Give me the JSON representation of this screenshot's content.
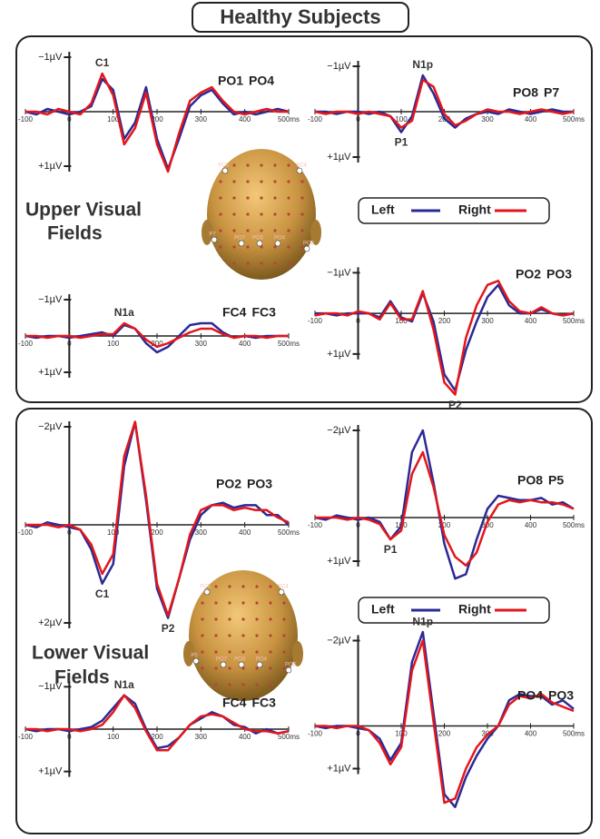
{
  "title": "Healthy Subjects",
  "sections": [
    {
      "label": [
        "Upper Visual",
        "Fields"
      ],
      "legend": [
        {
          "name": "Left",
          "color": "#2a2a96"
        },
        {
          "name": "Right",
          "color": "#e3161b"
        }
      ],
      "head_labels": [
        "FC3",
        "FC4",
        "P7",
        "PO7",
        "PO3",
        "PO4",
        "PO8"
      ]
    },
    {
      "label": [
        "Lower Visual",
        "Fields"
      ],
      "legend": [
        {
          "name": "Left",
          "color": "#2a2a96"
        },
        {
          "name": "Right",
          "color": "#e3161b"
        }
      ],
      "head_labels": [
        "FC3",
        "FC4",
        "P5",
        "PO7",
        "PO3",
        "PO4",
        "PO8"
      ]
    }
  ],
  "chart_data": [
    {
      "type": "line",
      "x": [
        -100,
        -75,
        -50,
        -25,
        0,
        25,
        50,
        75,
        100,
        125,
        150,
        175,
        200,
        225,
        250,
        275,
        300,
        325,
        350,
        375,
        400,
        425,
        450,
        475,
        500
      ],
      "xlim": [
        -100,
        500
      ],
      "xticks": [
        -100,
        0,
        100,
        200,
        300,
        400,
        {
          "value": 500,
          "label": "500ms"
        }
      ],
      "ylim": [
        -1.5,
        1.5
      ],
      "y_inverted": true,
      "yticks": [
        {
          "value": -1,
          "label": "−1µV"
        },
        {
          "value": 1,
          "label": "+1µV"
        }
      ],
      "series": [
        {
          "name": "PO1",
          "color": "#2a2a96",
          "values": [
            0,
            0.05,
            -0.05,
            0,
            0.05,
            0,
            -0.1,
            -0.6,
            -0.4,
            0.5,
            0.2,
            -0.45,
            0.5,
            1.05,
            0.5,
            -0.1,
            -0.3,
            -0.4,
            -0.15,
            0.05,
            0,
            0.05,
            0,
            -0.05,
            0
          ]
        },
        {
          "name": "PO4",
          "color": "#e3161b",
          "values": [
            0,
            0,
            0.05,
            -0.05,
            0,
            0.05,
            -0.15,
            -0.7,
            -0.3,
            0.6,
            0.3,
            -0.35,
            0.6,
            1.1,
            0.4,
            -0.2,
            -0.35,
            -0.45,
            -0.2,
            0,
            0.05,
            0,
            -0.05,
            0,
            0
          ]
        }
      ],
      "annotations": [
        {
          "text": "C1",
          "x": 75
        }
      ]
    },
    {
      "type": "line",
      "x": [
        -100,
        -75,
        -50,
        -25,
        0,
        25,
        50,
        75,
        100,
        125,
        150,
        175,
        200,
        225,
        250,
        275,
        300,
        325,
        350,
        375,
        400,
        425,
        450,
        475,
        500
      ],
      "xlim": [
        -100,
        500
      ],
      "xticks": [
        -100,
        0,
        100,
        200,
        300,
        400,
        {
          "value": 500,
          "label": "500ms"
        }
      ],
      "ylim": [
        -1.5,
        1.5
      ],
      "y_inverted": true,
      "yticks": [
        {
          "value": -1,
          "label": "−1µV"
        },
        {
          "value": 1,
          "label": "+1µV"
        }
      ],
      "series": [
        {
          "name": "PO8",
          "color": "#2a2a96",
          "values": [
            0,
            0,
            0.05,
            0,
            0,
            0.05,
            0,
            0.1,
            0.45,
            0.1,
            -0.8,
            -0.4,
            0.15,
            0.35,
            0.15,
            0.05,
            0,
            0.05,
            -0.05,
            0,
            0.05,
            0,
            -0.05,
            0,
            0
          ]
        },
        {
          "name": "P7",
          "color": "#e3161b",
          "values": [
            0,
            0.05,
            0,
            0,
            0.05,
            0,
            0.05,
            0.1,
            0.35,
            0.2,
            -0.7,
            -0.55,
            0.05,
            0.3,
            0.2,
            0.05,
            -0.05,
            0,
            0,
            0.05,
            0,
            -0.05,
            0,
            0.05,
            0
          ]
        }
      ],
      "annotations": [
        {
          "text": "N1p",
          "x": 150
        },
        {
          "text": "P1",
          "x": 100
        }
      ]
    },
    {
      "type": "line",
      "x": [
        -100,
        -75,
        -50,
        -25,
        0,
        25,
        50,
        75,
        100,
        125,
        150,
        175,
        200,
        225,
        250,
        275,
        300,
        325,
        350,
        375,
        400,
        425,
        450,
        475,
        500
      ],
      "xlim": [
        -100,
        500
      ],
      "xticks": [
        -100,
        0,
        100,
        200,
        300,
        400,
        {
          "value": 500,
          "label": "500ms"
        }
      ],
      "ylim": [
        -1.5,
        1.5
      ],
      "y_inverted": true,
      "yticks": [
        {
          "value": -1,
          "label": "−1µV"
        },
        {
          "value": 1,
          "label": "+1µV"
        }
      ],
      "series": [
        {
          "name": "FC4",
          "color": "#2a2a96",
          "values": [
            0,
            0.05,
            0,
            0,
            0.05,
            0,
            -0.05,
            -0.1,
            0,
            -0.3,
            -0.2,
            0.2,
            0.45,
            0.3,
            0,
            -0.3,
            -0.35,
            -0.35,
            -0.1,
            0.05,
            0,
            0.05,
            0,
            0,
            0
          ]
        },
        {
          "name": "FC3",
          "color": "#e3161b",
          "values": [
            0,
            0,
            0.05,
            0,
            0,
            0.05,
            0,
            -0.05,
            -0.05,
            -0.35,
            -0.2,
            0.1,
            0.3,
            0.2,
            0.05,
            -0.1,
            -0.2,
            -0.2,
            -0.05,
            0.05,
            0,
            0,
            0.05,
            0,
            0
          ]
        }
      ],
      "annotations": [
        {
          "text": "N1a",
          "x": 125
        }
      ]
    },
    {
      "type": "line",
      "x": [
        -100,
        -75,
        -50,
        -25,
        0,
        25,
        50,
        75,
        100,
        125,
        150,
        175,
        200,
        225,
        250,
        275,
        300,
        325,
        350,
        375,
        400,
        425,
        450,
        475,
        500
      ],
      "xlim": [
        -100,
        500
      ],
      "xticks": [
        -100,
        0,
        100,
        200,
        300,
        400,
        {
          "value": 500,
          "label": "500ms"
        }
      ],
      "ylim": [
        -1.5,
        2.5
      ],
      "y_inverted": true,
      "yticks": [
        {
          "value": -1,
          "label": "−1µV"
        },
        {
          "value": 1,
          "label": "+1µV"
        }
      ],
      "series": [
        {
          "name": "PO2",
          "color": "#2a2a96",
          "values": [
            0,
            0,
            0.05,
            0,
            0,
            0,
            0.1,
            -0.3,
            0.1,
            0.2,
            -0.5,
            0.2,
            1.5,
            1.9,
            0.9,
            0.2,
            -0.4,
            -0.7,
            -0.2,
            0,
            0,
            -0.1,
            0,
            0.05,
            0
          ]
        },
        {
          "name": "PO3",
          "color": "#e3161b",
          "values": [
            0.05,
            0,
            0,
            0.05,
            -0.05,
            0,
            0.15,
            -0.25,
            0.15,
            0.15,
            -0.55,
            0.4,
            1.7,
            2.0,
            0.6,
            -0.2,
            -0.7,
            -0.8,
            -0.3,
            -0.05,
            0,
            -0.15,
            0,
            0.05,
            0
          ]
        }
      ],
      "annotations": [
        {
          "text": "P2",
          "x": 225
        }
      ]
    },
    {
      "type": "line",
      "x": [
        -100,
        -75,
        -50,
        -25,
        0,
        25,
        50,
        75,
        100,
        125,
        150,
        175,
        200,
        225,
        250,
        275,
        300,
        325,
        350,
        375,
        400,
        425,
        450,
        475,
        500
      ],
      "xlim": [
        -100,
        500
      ],
      "xticks": [
        -100,
        0,
        100,
        200,
        300,
        400,
        {
          "value": 500,
          "label": "500ms"
        }
      ],
      "ylim": [
        -2.5,
        2.5
      ],
      "y_inverted": true,
      "yticks": [
        {
          "value": -2,
          "label": "−2µV"
        },
        {
          "value": 2,
          "label": "+2µV"
        }
      ],
      "series": [
        {
          "name": "PO2",
          "color": "#2a2a96",
          "values": [
            0,
            0.05,
            -0.05,
            0,
            0.05,
            0.1,
            0.5,
            1.2,
            0.8,
            -1.2,
            -2.1,
            -0.5,
            1.3,
            1.9,
            1.1,
            0.3,
            -0.2,
            -0.4,
            -0.45,
            -0.35,
            -0.4,
            -0.4,
            -0.2,
            -0.2,
            0
          ]
        },
        {
          "name": "PO3",
          "color": "#e3161b",
          "values": [
            0,
            0,
            0,
            0.05,
            0,
            0.1,
            0.4,
            1.0,
            0.6,
            -1.4,
            -2.1,
            -0.6,
            1.2,
            1.85,
            1.1,
            0.2,
            -0.3,
            -0.4,
            -0.4,
            -0.3,
            -0.35,
            -0.3,
            -0.3,
            -0.15,
            -0.05
          ]
        }
      ],
      "annotations": [
        {
          "text": "C1",
          "x": 75
        },
        {
          "text": "P2",
          "x": 225
        }
      ]
    },
    {
      "type": "line",
      "x": [
        -100,
        -75,
        -50,
        -25,
        0,
        25,
        50,
        75,
        100,
        125,
        150,
        175,
        200,
        225,
        250,
        275,
        300,
        325,
        350,
        375,
        400,
        425,
        450,
        475,
        500
      ],
      "xlim": [
        -100,
        500
      ],
      "xticks": [
        -100,
        0,
        100,
        200,
        300,
        400,
        {
          "value": 500,
          "label": "500ms"
        }
      ],
      "ylim": [
        -2.5,
        2
      ],
      "y_inverted": true,
      "yticks": [
        {
          "value": -2,
          "label": "−2µV"
        },
        {
          "value": 1,
          "label": "+1µV"
        }
      ],
      "series": [
        {
          "name": "PO8",
          "color": "#2a2a96",
          "values": [
            0,
            0.05,
            -0.05,
            0,
            0.05,
            0,
            0.1,
            0.5,
            0.2,
            -1.5,
            -2.0,
            -0.8,
            0.6,
            1.4,
            1.3,
            0.5,
            -0.2,
            -0.5,
            -0.45,
            -0.4,
            -0.4,
            -0.45,
            -0.3,
            -0.35,
            -0.2
          ]
        },
        {
          "name": "P5",
          "color": "#e3161b",
          "values": [
            0,
            0,
            0,
            0.05,
            0,
            0.05,
            0.15,
            0.5,
            0.3,
            -1.0,
            -1.5,
            -0.7,
            0.4,
            0.9,
            1.1,
            0.8,
            0.1,
            -0.3,
            -0.4,
            -0.35,
            -0.4,
            -0.35,
            -0.35,
            -0.3,
            -0.2
          ]
        }
      ],
      "annotations": [
        {
          "text": "P1",
          "x": 75
        }
      ]
    },
    {
      "type": "line",
      "x": [
        -100,
        -75,
        -50,
        -25,
        0,
        25,
        50,
        75,
        100,
        125,
        150,
        175,
        200,
        225,
        250,
        275,
        300,
        325,
        350,
        375,
        400,
        425,
        450,
        475,
        500
      ],
      "xlim": [
        -100,
        500
      ],
      "xticks": [
        -100,
        0,
        100,
        200,
        300,
        400,
        {
          "value": 500,
          "label": "500ms"
        }
      ],
      "ylim": [
        -1.5,
        1.5
      ],
      "y_inverted": true,
      "yticks": [
        {
          "value": -1,
          "label": "−1µV"
        },
        {
          "value": 1,
          "label": "+1µV"
        }
      ],
      "series": [
        {
          "name": "FC4",
          "color": "#2a2a96",
          "values": [
            0,
            0.05,
            0,
            0,
            0.05,
            0,
            -0.05,
            -0.2,
            -0.5,
            -0.8,
            -0.6,
            0,
            0.45,
            0.4,
            0.2,
            -0.1,
            -0.25,
            -0.4,
            -0.3,
            -0.1,
            -0.05,
            0.1,
            0,
            0.1,
            0.05
          ]
        },
        {
          "name": "FC3",
          "color": "#e3161b",
          "values": [
            0,
            0,
            0.05,
            0,
            0,
            0.05,
            0,
            -0.1,
            -0.4,
            -0.8,
            -0.5,
            0.05,
            0.5,
            0.5,
            0.2,
            -0.1,
            -0.3,
            -0.35,
            -0.3,
            -0.15,
            0,
            0.05,
            0.05,
            0.1,
            0.05
          ]
        }
      ],
      "annotations": [
        {
          "text": "N1a",
          "x": 125
        }
      ]
    },
    {
      "type": "line",
      "x": [
        -100,
        -75,
        -50,
        -25,
        0,
        25,
        50,
        75,
        100,
        125,
        150,
        175,
        200,
        225,
        250,
        275,
        300,
        325,
        350,
        375,
        400,
        425,
        450,
        475,
        500
      ],
      "xlim": [
        -100,
        500
      ],
      "xticks": [
        -100,
        0,
        100,
        200,
        300,
        400,
        {
          "value": 500,
          "label": "500ms"
        }
      ],
      "ylim": [
        -2.5,
        2.5
      ],
      "y_inverted": true,
      "yticks": [
        {
          "value": -2,
          "label": "−2µV"
        },
        {
          "value": 1,
          "label": "+1µV"
        }
      ],
      "series": [
        {
          "name": "PO4",
          "color": "#2a2a96",
          "values": [
            0,
            0.05,
            0,
            0,
            0.05,
            0.1,
            0.3,
            0.8,
            0.4,
            -1.5,
            -2.2,
            -0.3,
            1.6,
            1.9,
            1.2,
            0.7,
            0.3,
            0,
            -0.6,
            -0.75,
            -0.7,
            -0.7,
            -0.5,
            -0.6,
            -0.4
          ]
        },
        {
          "name": "PO3",
          "color": "#e3161b",
          "values": [
            0,
            0,
            0.05,
            0,
            0,
            0.1,
            0.4,
            0.9,
            0.5,
            -1.3,
            -2.0,
            -0.1,
            1.8,
            1.7,
            1.0,
            0.5,
            0.2,
            0,
            -0.5,
            -0.7,
            -0.65,
            -0.75,
            -0.55,
            -0.45,
            -0.35
          ]
        }
      ],
      "annotations": [
        {
          "text": "N1p",
          "x": 150
        }
      ]
    }
  ]
}
